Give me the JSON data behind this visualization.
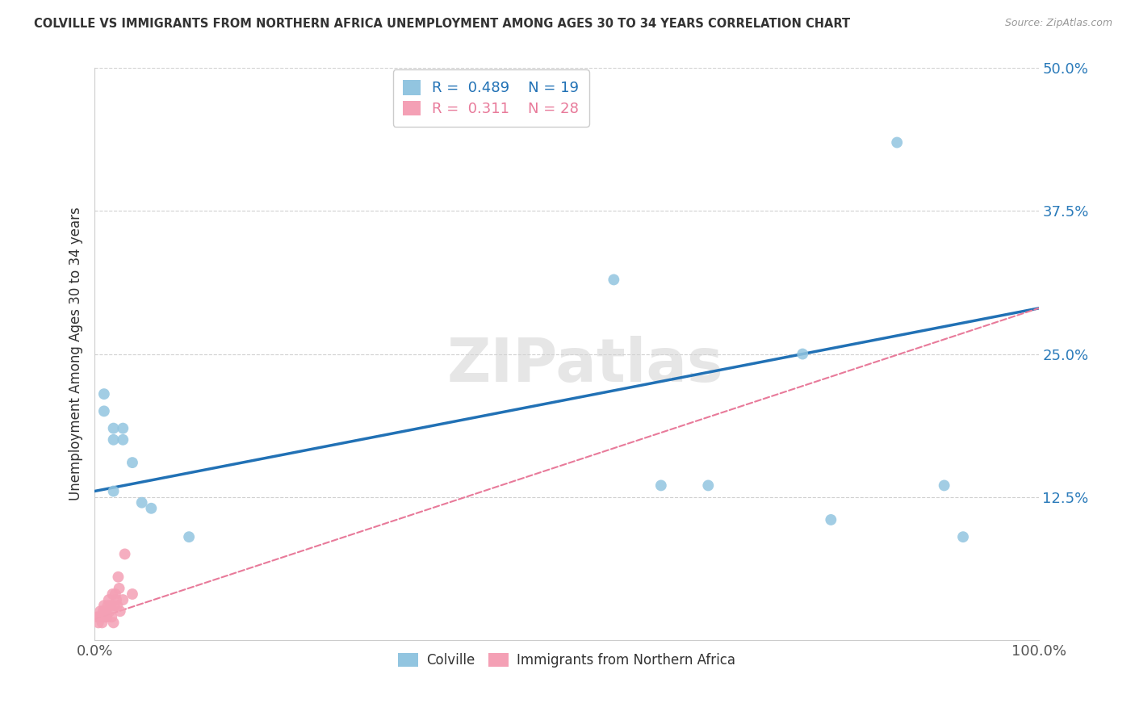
{
  "title": "COLVILLE VS IMMIGRANTS FROM NORTHERN AFRICA UNEMPLOYMENT AMONG AGES 30 TO 34 YEARS CORRELATION CHART",
  "source": "Source: ZipAtlas.com",
  "ylabel": "Unemployment Among Ages 30 to 34 years",
  "xlim": [
    0,
    1.0
  ],
  "ylim": [
    0,
    0.5
  ],
  "xticks": [
    0.0,
    1.0
  ],
  "xticklabels": [
    "0.0%",
    "100.0%"
  ],
  "yticks": [
    0.125,
    0.25,
    0.375,
    0.5
  ],
  "yticklabels": [
    "12.5%",
    "25.0%",
    "37.5%",
    "50.0%"
  ],
  "colville_color": "#92c5e0",
  "immigrant_color": "#f4a0b5",
  "colville_line_color": "#2171b5",
  "immigrant_line_color": "#e87a9a",
  "legend_r1": "0.489",
  "legend_n1": "19",
  "legend_r2": "0.311",
  "legend_n2": "28",
  "colville_x": [
    0.01,
    0.01,
    0.02,
    0.02,
    0.02,
    0.03,
    0.03,
    0.04,
    0.05,
    0.06,
    0.1,
    0.55,
    0.6,
    0.65,
    0.75,
    0.78,
    0.85,
    0.9,
    0.92
  ],
  "colville_y": [
    0.215,
    0.2,
    0.185,
    0.175,
    0.13,
    0.185,
    0.175,
    0.155,
    0.12,
    0.115,
    0.09,
    0.315,
    0.135,
    0.135,
    0.25,
    0.105,
    0.435,
    0.135,
    0.09
  ],
  "immigrant_x": [
    0.003,
    0.004,
    0.005,
    0.006,
    0.007,
    0.008,
    0.009,
    0.01,
    0.011,
    0.012,
    0.013,
    0.014,
    0.015,
    0.016,
    0.017,
    0.018,
    0.019,
    0.02,
    0.021,
    0.022,
    0.023,
    0.024,
    0.025,
    0.026,
    0.027,
    0.03,
    0.032,
    0.04
  ],
  "immigrant_y": [
    0.02,
    0.015,
    0.02,
    0.025,
    0.02,
    0.015,
    0.025,
    0.03,
    0.02,
    0.025,
    0.02,
    0.03,
    0.035,
    0.025,
    0.03,
    0.02,
    0.04,
    0.015,
    0.03,
    0.04,
    0.035,
    0.03,
    0.055,
    0.045,
    0.025,
    0.035,
    0.075,
    0.04
  ],
  "colville_line": [
    0.0,
    1.0,
    0.13,
    0.29
  ],
  "immigrant_line": [
    0.0,
    1.0,
    0.018,
    0.29
  ],
  "watermark": "ZIPatlas",
  "background_color": "#ffffff",
  "grid_color": "#d0d0d0",
  "ytick_color": "#2b7bba",
  "xtick_color": "#555555"
}
